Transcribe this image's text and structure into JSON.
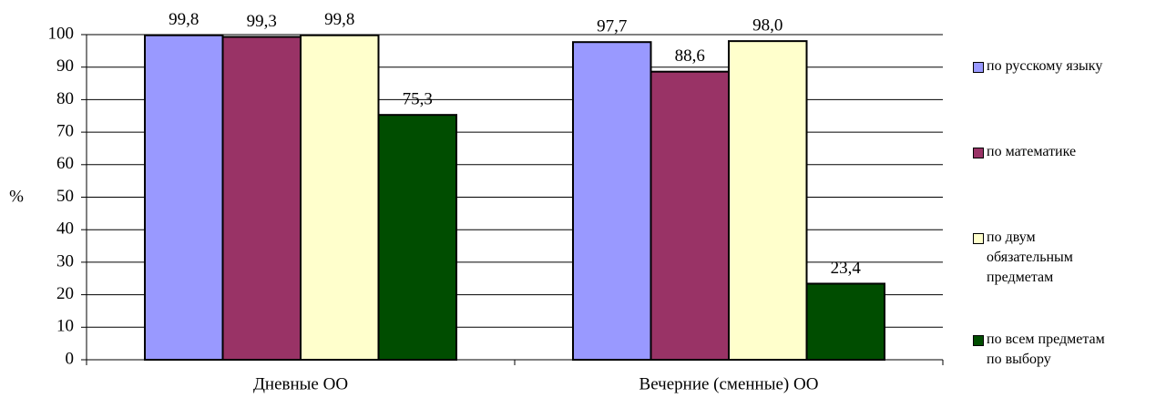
{
  "chart_data": {
    "type": "bar",
    "y_label": "%",
    "categories": [
      "Дневные ОО",
      "Вечерние (сменные) ОО"
    ],
    "series": [
      {
        "name": "по русскому языку",
        "color": "#9999ff",
        "values": [
          99.8,
          97.7
        ],
        "value_labels": [
          "99,8",
          "97,7"
        ]
      },
      {
        "name": "по математике",
        "color": "#993366",
        "values": [
          99.3,
          88.6
        ],
        "value_labels": [
          "99,3",
          "88,6"
        ]
      },
      {
        "name": "по двум обязательным предметам",
        "color": "#ffffcc",
        "values": [
          99.8,
          98.0
        ],
        "value_labels": [
          "99,8",
          "98,0"
        ]
      },
      {
        "name": "по всем предметам по выбору",
        "color": "#004d00",
        "values": [
          75.3,
          23.4
        ],
        "value_labels": [
          "75,3",
          "23,4"
        ]
      }
    ],
    "ylim": [
      0,
      100
    ],
    "yticks": [
      0,
      10,
      20,
      30,
      40,
      50,
      60,
      70,
      80,
      90,
      100
    ],
    "grid": true,
    "legend": "right"
  }
}
